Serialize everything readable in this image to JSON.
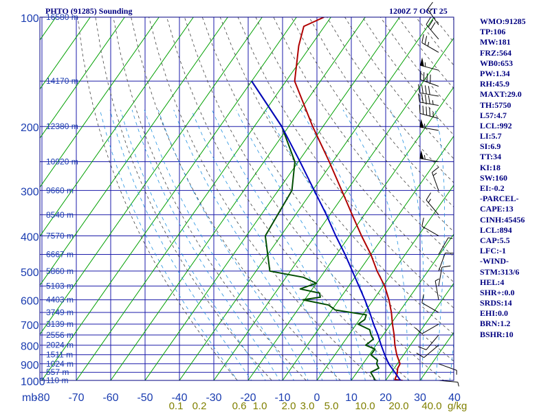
{
  "header": {
    "station_title": "PHTO (91285) Sounding",
    "valid_time": "1200Z  7 OCT 25"
  },
  "indices": [
    "WMO:91285",
    "TP:106",
    "MW:181",
    "FRZ:564",
    "WB0:653",
    "PW:1.34",
    "RH:45.9",
    "MAXT:29.0",
    "TH:5750",
    "L57:4.7",
    "LCL:992",
    "LI:5.7",
    "SI:6.9",
    "TT:34",
    "KI:18",
    "SW:160",
    "EI:-0.2",
    "-PARCEL-",
    "CAPE:13",
    "CINH:45456",
    "LCL:894",
    "CAP:5.5",
    "LFC:-1",
    "-WIND-",
    "STM:313/6",
    "HEL:4",
    "SHR+:0.0",
    "SRDS:14",
    "EHI:0.0",
    "BRN:1.2",
    "BSHR:10"
  ],
  "colors": {
    "frame": "#000080",
    "isobar_grid": "#1a1aa8",
    "isotherm": "#00a000",
    "dry_adiabat": "#404040",
    "moist_adiabat": "#2090e0",
    "temperature": "#b00000",
    "dewpoint": "#004d00",
    "parcel": "#0000c0",
    "axis_text": "#1a3cb0",
    "mixing_ratio_text": "#808000"
  },
  "chart_data": {
    "type": "line",
    "x_axis": {
      "label_prefix": "mb",
      "ticks": [
        -80,
        -70,
        -60,
        -50,
        -40,
        -30,
        -20,
        -10,
        0,
        10,
        20,
        30,
        40
      ],
      "range_celsius": [
        -80,
        42
      ]
    },
    "y_axis": {
      "scale": "log",
      "ticks_mb": [
        100,
        200,
        300,
        400,
        500,
        600,
        700,
        800,
        900,
        1000
      ],
      "range_mb": [
        100,
        1050
      ]
    },
    "height_labels": [
      {
        "p": 100,
        "label": "16580 m"
      },
      {
        "p": 150,
        "label": "14170 m"
      },
      {
        "p": 200,
        "label": "12380 m"
      },
      {
        "p": 250,
        "label": "10920 m"
      },
      {
        "p": 300,
        "label": "9660 m"
      },
      {
        "p": 350,
        "label": "8540 m"
      },
      {
        "p": 400,
        "label": "7570 m"
      },
      {
        "p": 450,
        "label": "6667 m"
      },
      {
        "p": 500,
        "label": "5860 m"
      },
      {
        "p": 550,
        "label": "5103 m"
      },
      {
        "p": 600,
        "label": "4403 m"
      },
      {
        "p": 650,
        "label": "3749 m"
      },
      {
        "p": 700,
        "label": "3139 m"
      },
      {
        "p": 750,
        "label": "2556 m"
      },
      {
        "p": 800,
        "label": "2024 m"
      },
      {
        "p": 850,
        "label": "1511 m"
      },
      {
        "p": 900,
        "label": "1024 m"
      },
      {
        "p": 950,
        "label": "557 m"
      },
      {
        "p": 1000,
        "label": "110 m"
      }
    ],
    "mixing_ratio_labels": [
      "0.1",
      "0.2",
      "0.6",
      "1.0",
      "2.0",
      "3.0",
      "5.0",
      "10.0",
      "20.0",
      "40.0"
    ],
    "mixing_ratio_unit": "g/kg",
    "series": [
      {
        "key": "temperature",
        "points": [
          [
            1008,
            25.0
          ],
          [
            1000,
            24.8
          ],
          [
            995,
            22.5
          ],
          [
            960,
            22.0
          ],
          [
            925,
            21.0
          ],
          [
            900,
            20.8
          ],
          [
            850,
            18.0
          ],
          [
            800,
            15.5
          ],
          [
            750,
            13.2
          ],
          [
            700,
            10.5
          ],
          [
            650,
            7.8
          ],
          [
            600,
            4.5
          ],
          [
            550,
            0.5
          ],
          [
            500,
            -4.8
          ],
          [
            450,
            -10.0
          ],
          [
            400,
            -16.5
          ],
          [
            350,
            -23.5
          ],
          [
            300,
            -31.5
          ],
          [
            250,
            -41.0
          ],
          [
            200,
            -53.0
          ],
          [
            150,
            -67.5
          ],
          [
            120,
            -73.5
          ],
          [
            106,
            -76.0
          ],
          [
            100,
            -72.0
          ]
        ]
      },
      {
        "key": "dewpoint",
        "points": [
          [
            1008,
            20.0
          ],
          [
            1000,
            17.0
          ],
          [
            950,
            14.0
          ],
          [
            925,
            15.5
          ],
          [
            900,
            14.0
          ],
          [
            880,
            13.5
          ],
          [
            850,
            10.5
          ],
          [
            820,
            10.5
          ],
          [
            800,
            7.0
          ],
          [
            770,
            8.0
          ],
          [
            750,
            6.5
          ],
          [
            725,
            5.0
          ],
          [
            700,
            0.5
          ],
          [
            680,
            1.5
          ],
          [
            660,
            1.0
          ],
          [
            640,
            -9.0
          ],
          [
            620,
            -12.0
          ],
          [
            600,
            -20.5
          ],
          [
            590,
            -16.0
          ],
          [
            575,
            -17.0
          ],
          [
            560,
            -23.5
          ],
          [
            540,
            -20.0
          ],
          [
            520,
            -25.0
          ],
          [
            500,
            -36.0
          ],
          [
            400,
            -44.5
          ],
          [
            300,
            -46.0
          ],
          [
            250,
            -51.0
          ],
          [
            200,
            -62.0
          ],
          [
            150,
            -80.0
          ]
        ]
      },
      {
        "key": "parcel",
        "points": [
          [
            1000,
            24.3
          ],
          [
            950,
            21.0
          ],
          [
            900,
            17.5
          ],
          [
            850,
            14.5
          ],
          [
            800,
            11.5
          ],
          [
            750,
            8.5
          ],
          [
            700,
            5.0
          ],
          [
            650,
            1.5
          ],
          [
            600,
            -2.5
          ],
          [
            550,
            -7.0
          ],
          [
            500,
            -12.0
          ],
          [
            450,
            -17.5
          ],
          [
            400,
            -24.0
          ],
          [
            350,
            -31.0
          ],
          [
            300,
            -39.5
          ],
          [
            250,
            -49.5
          ],
          [
            200,
            -62.0
          ],
          [
            150,
            -80.0
          ]
        ]
      }
    ],
    "wind_barbs": [
      {
        "p": 105,
        "dir": 325,
        "kt": 15
      },
      {
        "p": 115,
        "dir": 320,
        "kt": 30
      },
      {
        "p": 125,
        "dir": 300,
        "kt": 25
      },
      {
        "p": 140,
        "dir": 285,
        "kt": 55
      },
      {
        "p": 155,
        "dir": 290,
        "kt": 40
      },
      {
        "p": 165,
        "dir": 280,
        "kt": 40
      },
      {
        "p": 175,
        "dir": 280,
        "kt": 45
      },
      {
        "p": 190,
        "dir": 285,
        "kt": 45
      },
      {
        "p": 205,
        "dir": 280,
        "kt": 55
      },
      {
        "p": 250,
        "dir": 280,
        "kt": 55
      },
      {
        "p": 300,
        "dir": 340,
        "kt": 15
      },
      {
        "p": 350,
        "dir": 320,
        "kt": 15
      },
      {
        "p": 400,
        "dir": 300,
        "kt": 10
      },
      {
        "p": 450,
        "dir": 30,
        "kt": 5
      },
      {
        "p": 500,
        "dir": 20,
        "kt": 10
      },
      {
        "p": 550,
        "dir": 10,
        "kt": 10
      },
      {
        "p": 600,
        "dir": 350,
        "kt": 5
      },
      {
        "p": 650,
        "dir": 300,
        "kt": 10
      },
      {
        "p": 700,
        "dir": 240,
        "kt": 10
      },
      {
        "p": 750,
        "dir": 220,
        "kt": 10
      },
      {
        "p": 800,
        "dir": 230,
        "kt": 10
      },
      {
        "p": 900,
        "dir": 110,
        "kt": 5
      },
      {
        "p": 1000,
        "dir": 95,
        "kt": 5
      }
    ]
  }
}
